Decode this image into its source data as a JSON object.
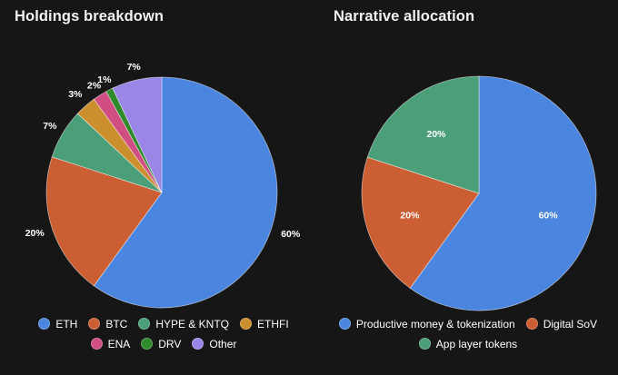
{
  "chart_data": [
    {
      "type": "pie",
      "title": "Holdings breakdown",
      "slices": [
        {
          "label": "ETH",
          "value": 60,
          "data_label": "60%",
          "color": "#4a86e0"
        },
        {
          "label": "BTC",
          "value": 20,
          "data_label": "20%",
          "color": "#cc5e33"
        },
        {
          "label": "HYPE & KNTQ",
          "value": 7,
          "data_label": "7%",
          "color": "#4a9e78"
        },
        {
          "label": "ETHFI",
          "value": 3,
          "data_label": "3%",
          "color": "#cc8f2e"
        },
        {
          "label": "ENA",
          "value": 2,
          "data_label": "2%",
          "color": "#d04e82"
        },
        {
          "label": "DRV",
          "value": 1,
          "data_label": "1%",
          "color": "#2f8a2c"
        },
        {
          "label": "Other",
          "value": 7,
          "data_label": "7%",
          "color": "#9a86e6"
        }
      ],
      "label_placement": "outside",
      "legend_position": "bottom"
    },
    {
      "type": "pie",
      "title": "Narrative allocation",
      "slices": [
        {
          "label": "Productive money & tokenization",
          "value": 60,
          "data_label": "60%",
          "color": "#4a86e0"
        },
        {
          "label": "Digital SoV",
          "value": 20,
          "data_label": "20%",
          "color": "#cc5e33"
        },
        {
          "label": "App layer tokens",
          "value": 20,
          "data_label": "20%",
          "color": "#4a9e78"
        }
      ],
      "label_placement": "inside",
      "legend_position": "bottom"
    }
  ]
}
